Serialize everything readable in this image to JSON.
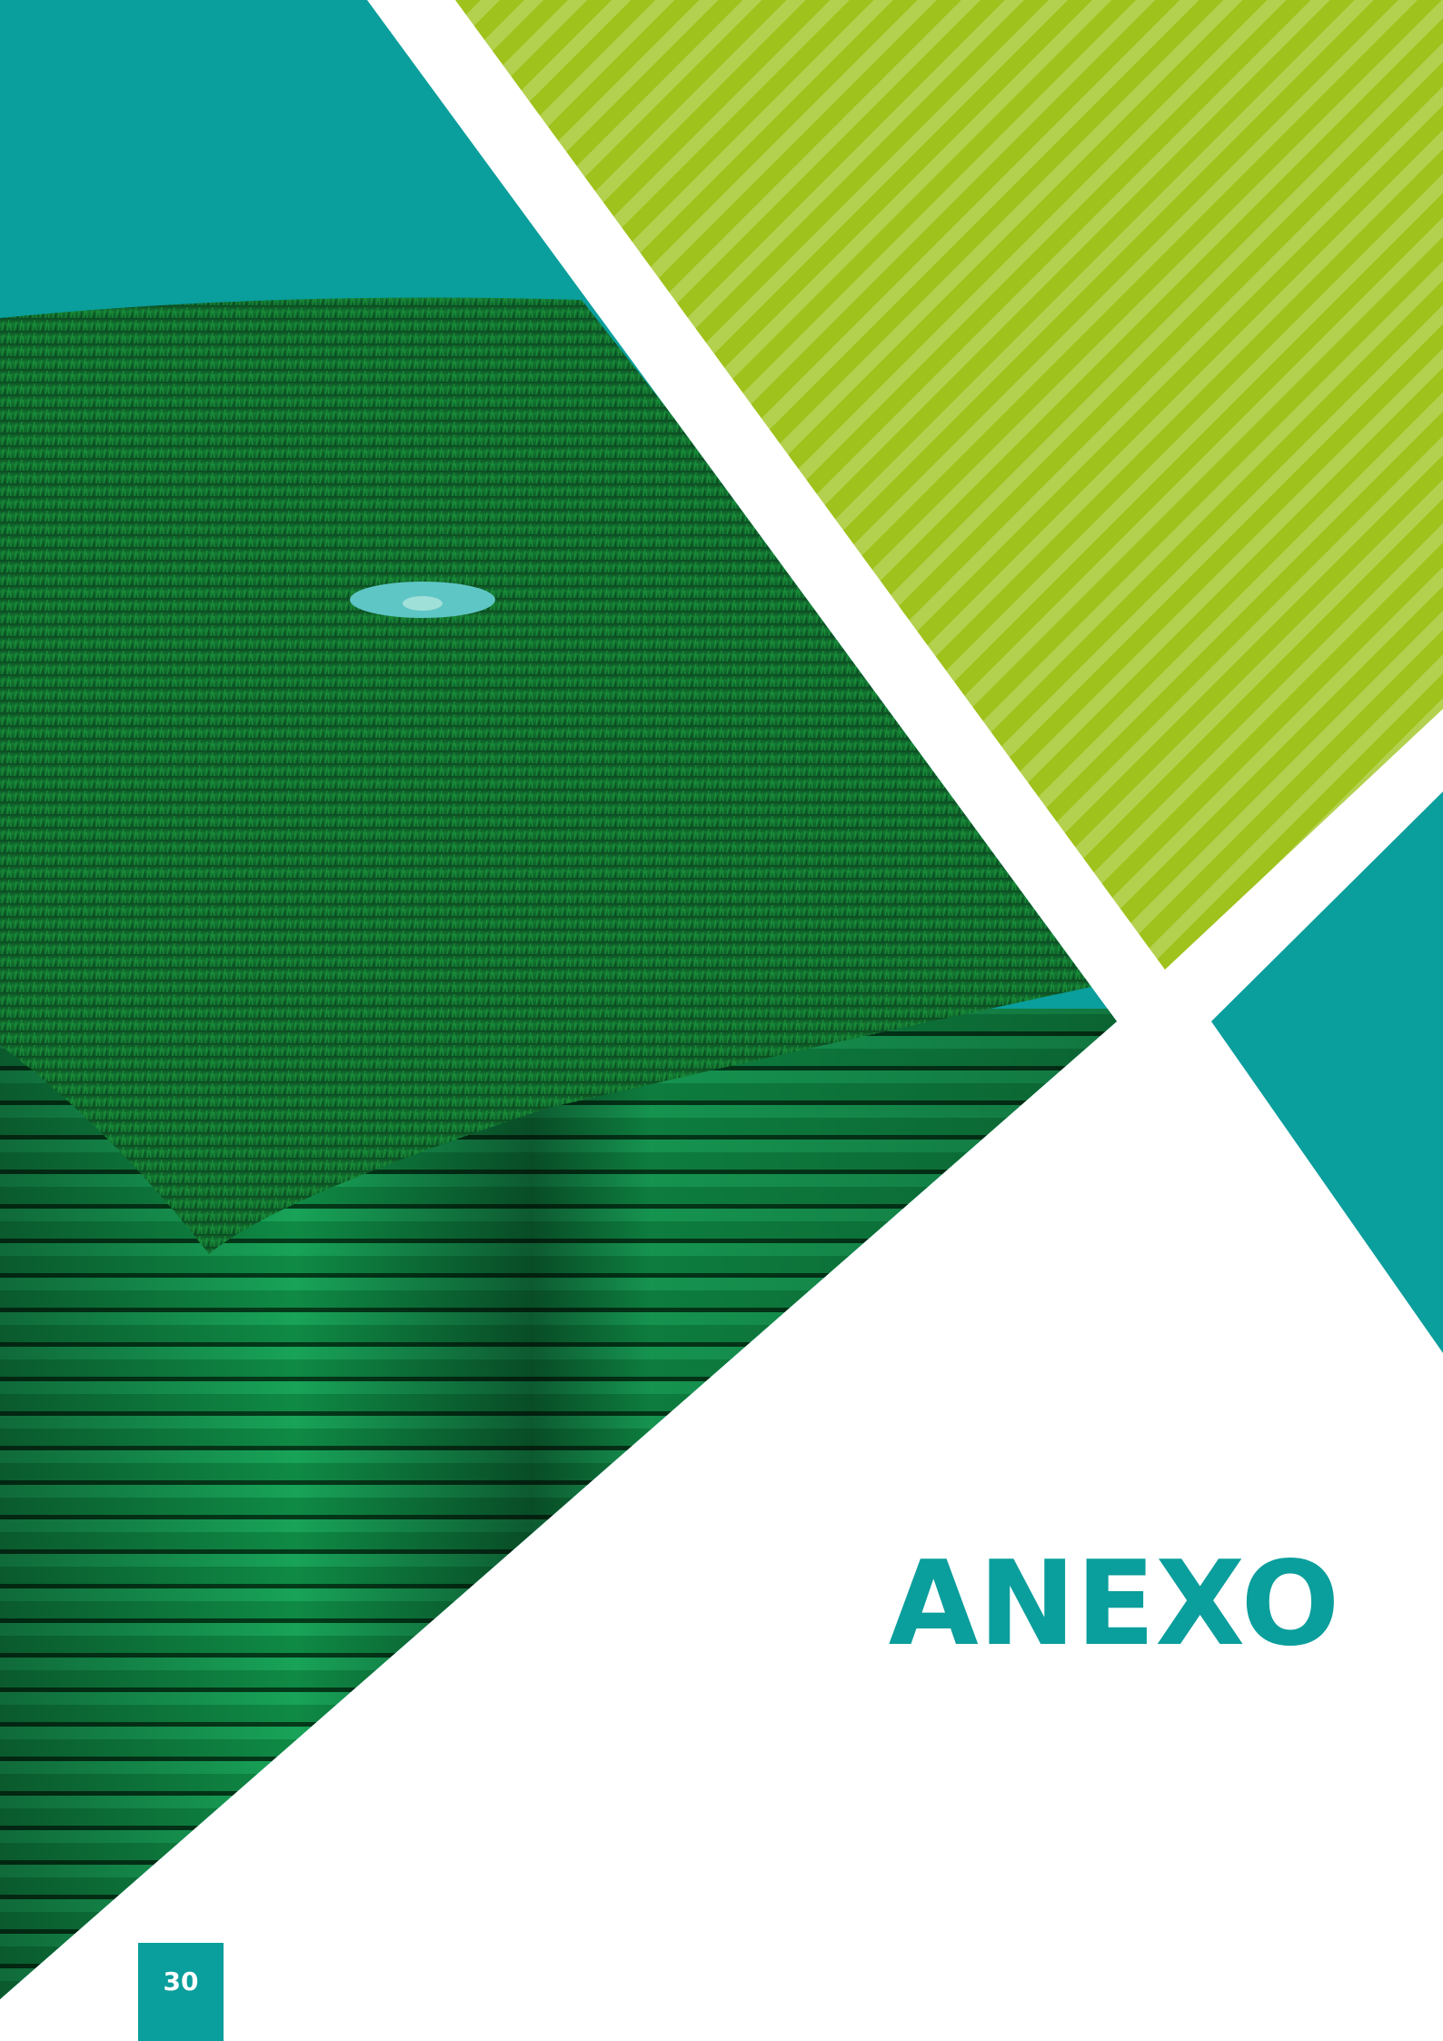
{
  "title": "ANEXO",
  "page_number": "30"
}
